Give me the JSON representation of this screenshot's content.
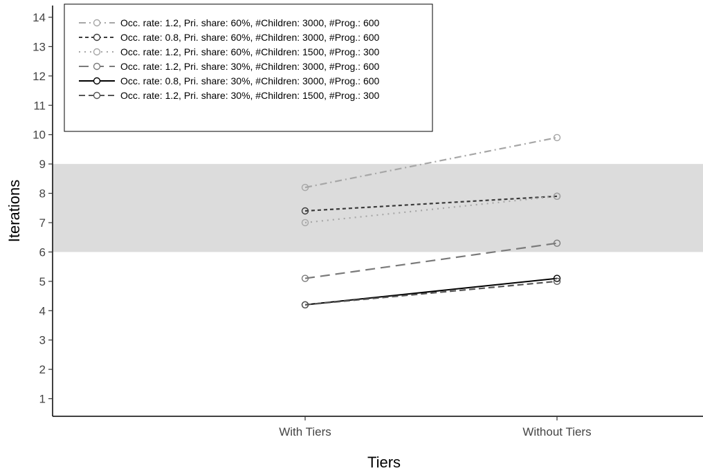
{
  "chart_data": {
    "type": "line",
    "title": "",
    "xlabel": "Tiers",
    "ylabel": "Iterations",
    "categories": [
      "With Tiers",
      "Without Tiers"
    ],
    "ylim": [
      0.4,
      14.4
    ],
    "yticks": [
      1,
      2,
      3,
      4,
      5,
      6,
      7,
      8,
      9,
      10,
      11,
      12,
      13,
      14
    ],
    "band": {
      "from": 6,
      "to": 9,
      "color": "#dcdcdc"
    },
    "grid": false,
    "legend_position": "top-left",
    "series": [
      {
        "name": "Occ. rate: 1.2, Pri. share: 60%, #Children: 3000, #Prog.: 600",
        "values": [
          8.2,
          9.9
        ],
        "color": "#a6a6a6",
        "dash": "dotdash"
      },
      {
        "name": "Occ. rate: 0.8, Pri. share: 60%, #Children: 3000, #Prog.: 600",
        "values": [
          7.4,
          7.9
        ],
        "color": "#3a3a3a",
        "dash": "dashed-short"
      },
      {
        "name": "Occ. rate: 1.2, Pri. share: 60%, #Children: 1500, #Prog.: 300",
        "values": [
          7.0,
          7.9
        ],
        "color": "#a6a6a6",
        "dash": "dotted"
      },
      {
        "name": "Occ. rate: 1.2, Pri. share: 30%, #Children: 3000, #Prog.: 600",
        "values": [
          5.1,
          6.3
        ],
        "color": "#7a7a7a",
        "dash": "dashed-long"
      },
      {
        "name": "Occ. rate: 0.8, Pri. share: 30%, #Children: 3000, #Prog.: 600",
        "values": [
          4.2,
          5.1
        ],
        "color": "#000000",
        "dash": "solid"
      },
      {
        "name": "Occ. rate: 1.2, Pri. share: 30%, #Children: 1500, #Prog.: 300",
        "values": [
          4.2,
          5.0
        ],
        "color": "#555555",
        "dash": "dashed"
      }
    ]
  }
}
